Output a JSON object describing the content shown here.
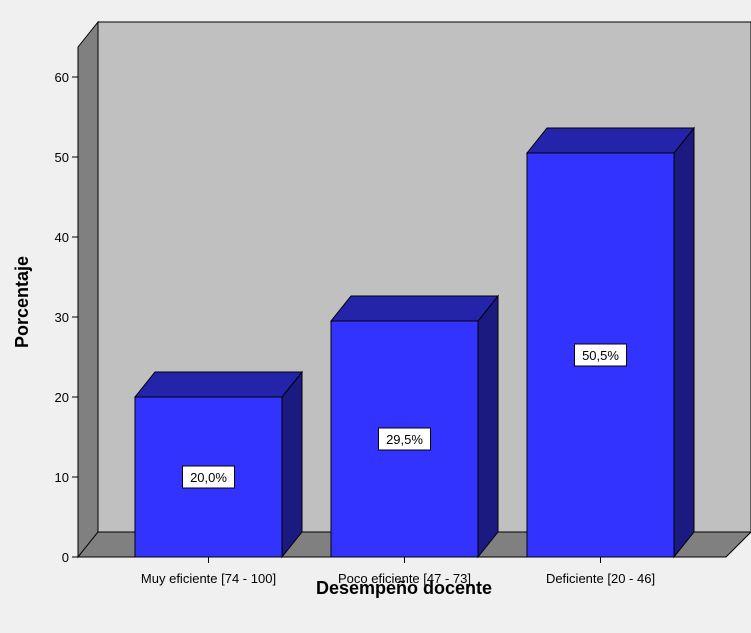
{
  "chart_data": {
    "type": "bar",
    "categories": [
      "Muy eficiente [74 - 100]",
      "Poco eficiente [47 - 73]",
      "Deficiente [20 - 46]"
    ],
    "values": [
      20.0,
      29.5,
      50.5
    ],
    "data_labels": [
      "20,0%",
      "29,5%",
      "50,5%"
    ],
    "xlabel": "Desempeño docente",
    "ylabel": "Porcentaje",
    "ylim": [
      0,
      60
    ],
    "yticks": [
      0,
      10,
      20,
      30,
      40,
      50,
      60
    ],
    "grid": false,
    "style": "3d",
    "colors": {
      "bar_front": "#3333ff",
      "bar_top": "#2424aa",
      "bar_side": "#1a1a80",
      "plot_back": "#c0c0c0",
      "plot_left": "#808080",
      "plot_floor": "#808080",
      "page": "#f0f0f0"
    }
  }
}
